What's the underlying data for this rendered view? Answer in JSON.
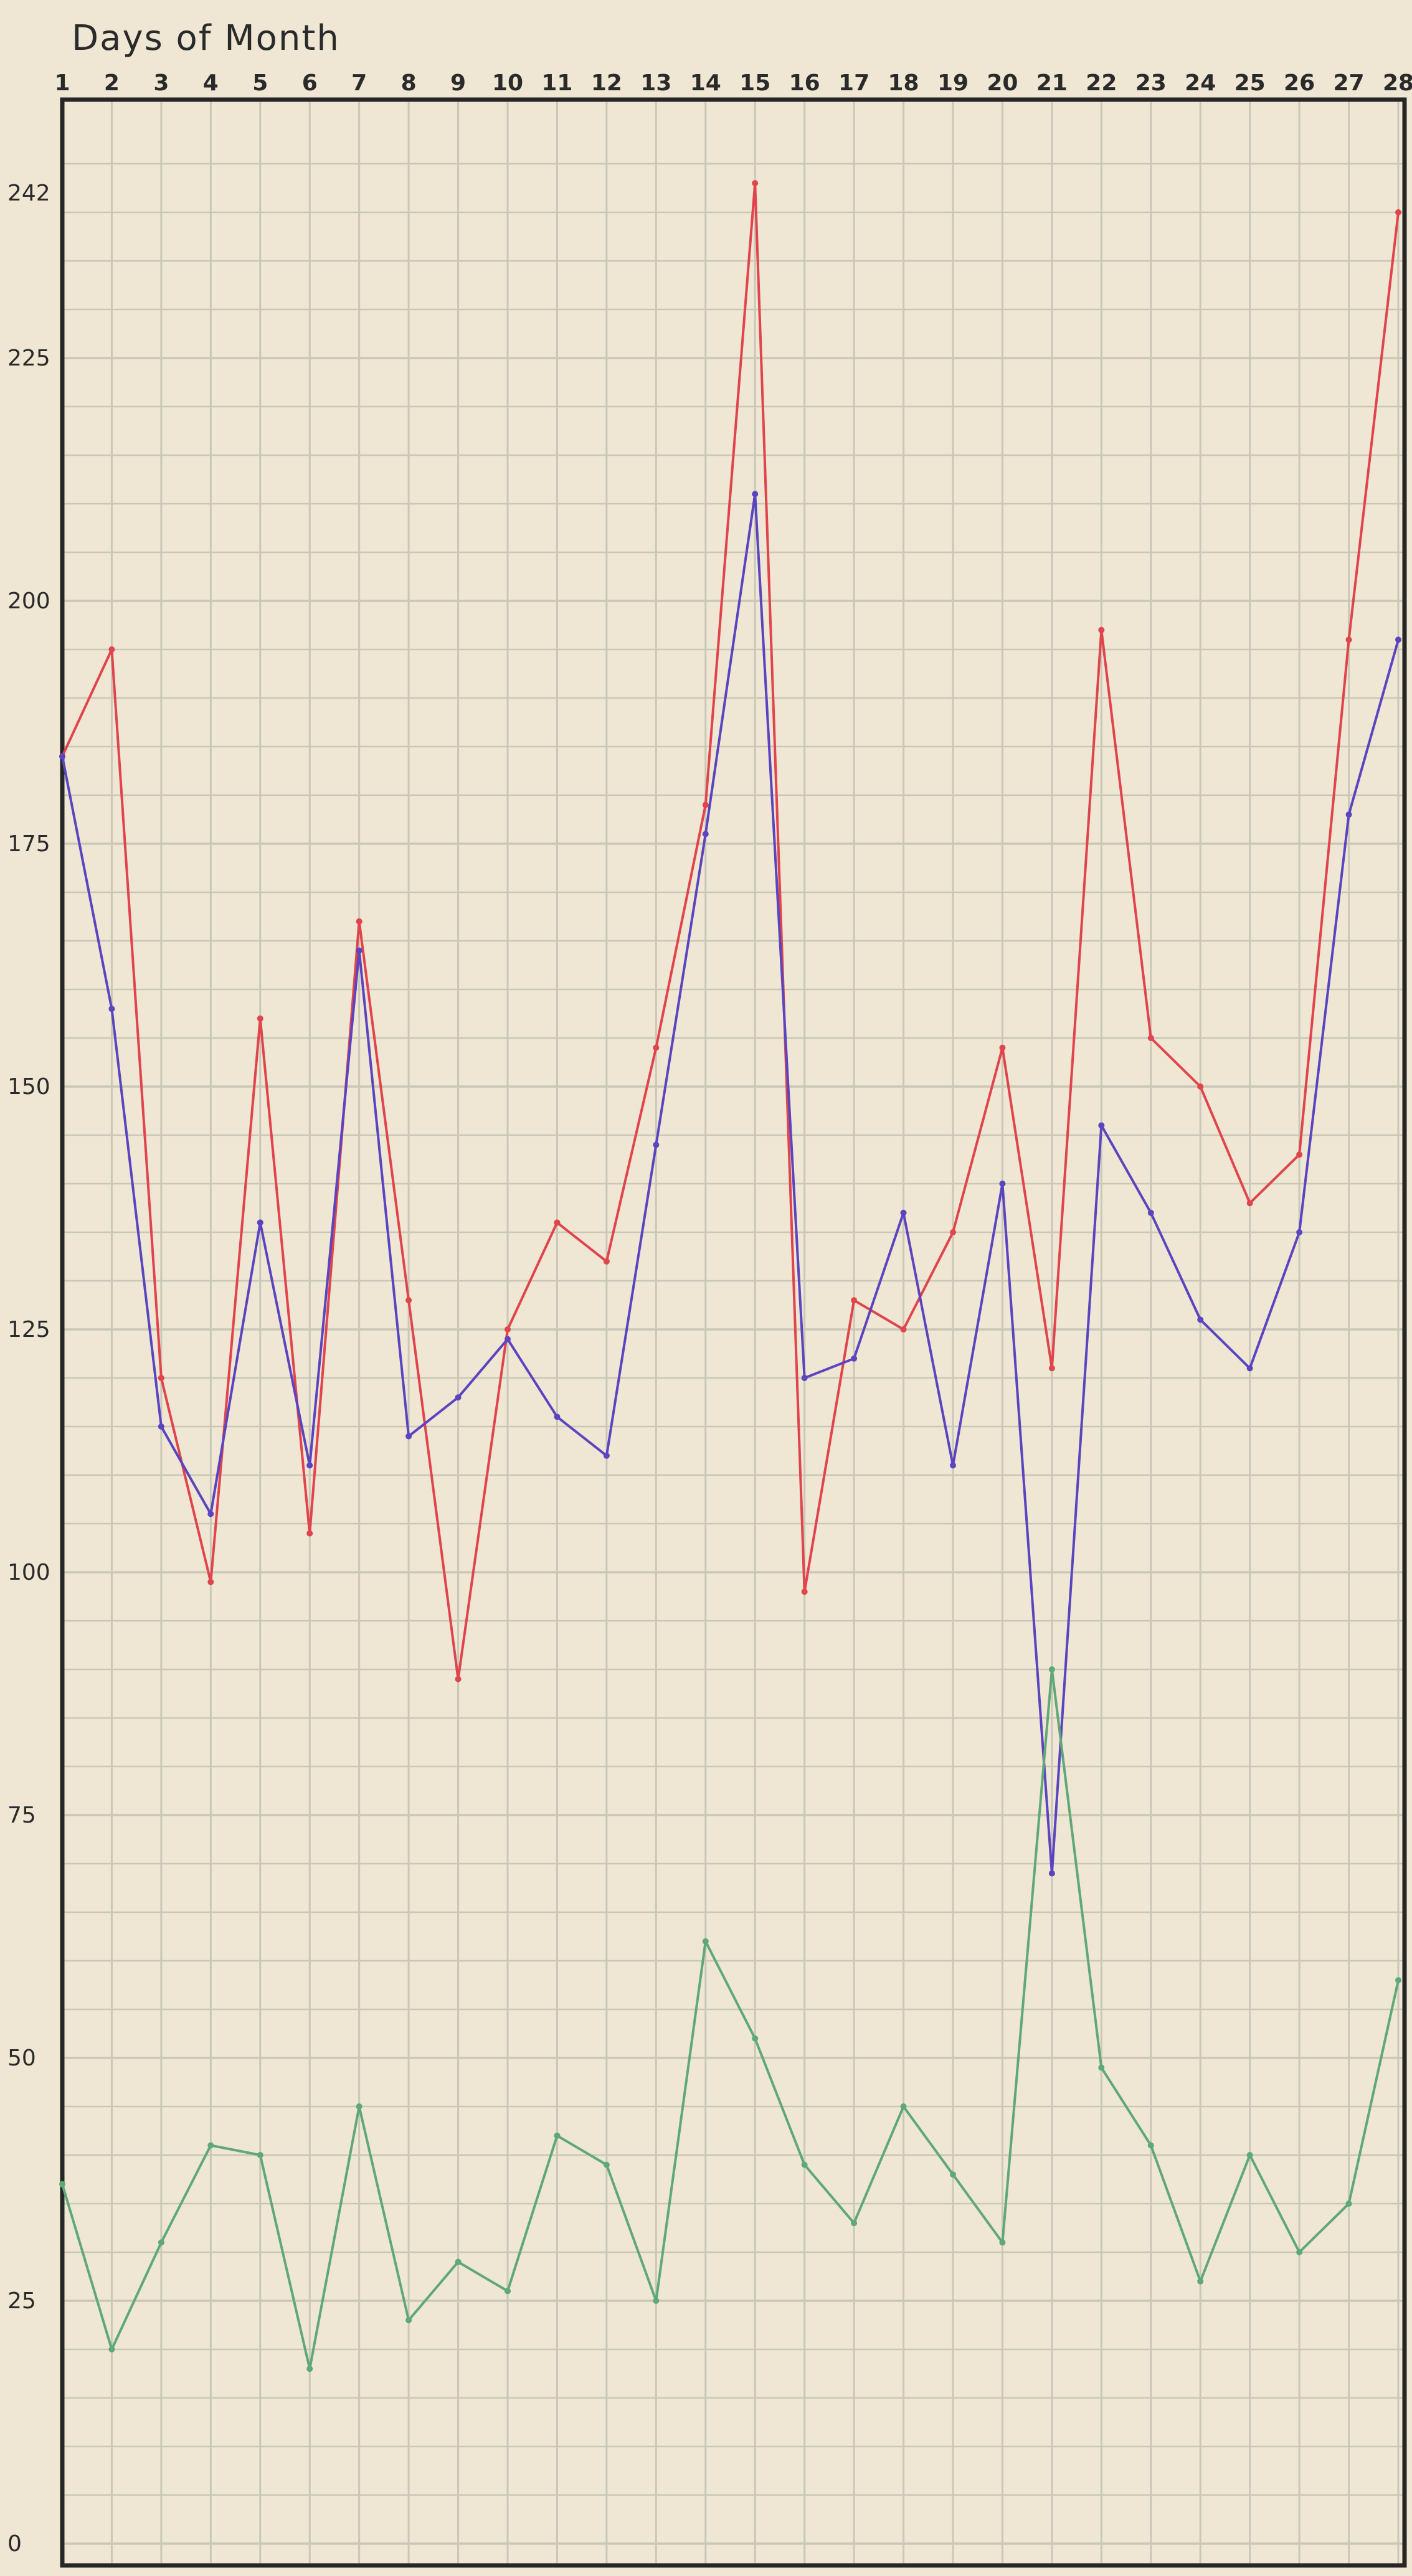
{
  "chart_data": {
    "type": "line",
    "title": "Days of Month",
    "xlabel": "",
    "ylabel": "",
    "x": [
      1,
      2,
      3,
      4,
      5,
      6,
      7,
      8,
      9,
      10,
      11,
      12,
      13,
      14,
      15,
      16,
      17,
      18,
      19,
      20,
      21,
      22,
      23,
      24,
      25,
      26,
      27,
      28
    ],
    "xlim": [
      1,
      28
    ],
    "ylim": [
      0,
      247
    ],
    "y_ticks": [
      0,
      25,
      50,
      75,
      100,
      125,
      150,
      175,
      200,
      225,
      242
    ],
    "grid": true,
    "legend": "none",
    "series": [
      {
        "color": "#e0444c",
        "values": [
          184,
          195,
          120,
          99,
          157,
          104,
          167,
          128,
          89,
          125,
          136,
          132,
          154,
          179,
          243,
          98,
          128,
          125,
          135,
          154,
          121,
          197,
          155,
          150,
          138,
          143,
          196,
          240
        ]
      },
      {
        "color": "#5a44c0",
        "values": [
          184,
          158,
          115,
          106,
          136,
          111,
          164,
          114,
          118,
          124,
          116,
          112,
          144,
          176,
          211,
          120,
          122,
          137,
          111,
          140,
          69,
          146,
          137,
          126,
          121,
          135,
          178,
          196
        ]
      },
      {
        "color": "#5fa877",
        "values": [
          37,
          20,
          31,
          41,
          40,
          18,
          45,
          23,
          29,
          26,
          42,
          39,
          25,
          62,
          52,
          39,
          33,
          45,
          38,
          31,
          90,
          49,
          41,
          27,
          40,
          30,
          35,
          58
        ]
      }
    ]
  },
  "colors": {
    "paper": "#efe7d3",
    "grid": "#c9c7b8",
    "frame": "#262626"
  }
}
